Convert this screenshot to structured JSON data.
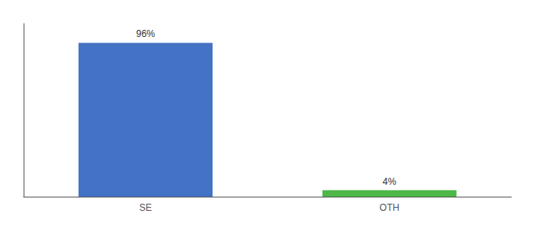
{
  "chart_data": {
    "type": "bar",
    "categories": [
      "SE",
      "OTH"
    ],
    "values": [
      96,
      4
    ],
    "value_labels": [
      "96%",
      "4%"
    ],
    "colors": [
      "#4472c4",
      "#4db848"
    ],
    "data_labels": true,
    "ylim": [
      0,
      108
    ],
    "tick_labels": "x",
    "grid": false
  }
}
